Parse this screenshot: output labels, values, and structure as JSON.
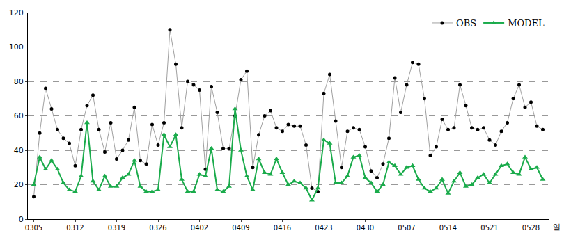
{
  "chart_data": {
    "type": "line",
    "x_label": "일",
    "categories": [
      "0305",
      null,
      null,
      null,
      null,
      null,
      null,
      "0312",
      null,
      null,
      null,
      null,
      null,
      null,
      "0319",
      null,
      null,
      null,
      null,
      null,
      null,
      "0326",
      null,
      null,
      null,
      null,
      null,
      null,
      "0402",
      null,
      null,
      null,
      null,
      null,
      null,
      "0409",
      null,
      null,
      null,
      null,
      null,
      null,
      "0416",
      null,
      null,
      null,
      null,
      null,
      null,
      "0423",
      null,
      null,
      null,
      null,
      null,
      null,
      "0430",
      null,
      null,
      null,
      null,
      null,
      null,
      "0507",
      null,
      null,
      null,
      null,
      null,
      null,
      "0514",
      null,
      null,
      null,
      null,
      null,
      null,
      "0521",
      null,
      null,
      null,
      null,
      null,
      null,
      "0528",
      null,
      null
    ],
    "series": [
      {
        "name": "OBS",
        "color": "#000000",
        "marker": "circle",
        "line_style": "solid",
        "values": [
          13,
          50,
          76,
          64,
          52,
          47,
          44,
          31,
          52,
          66,
          72,
          52,
          39,
          56,
          35,
          40,
          46,
          65,
          34,
          32,
          55,
          43,
          56,
          110,
          90,
          53,
          80,
          78,
          75,
          29,
          77,
          62,
          41,
          41,
          60,
          81,
          86,
          30,
          49,
          60,
          63,
          53,
          51,
          55,
          54,
          54,
          43,
          18,
          16,
          73,
          84,
          57,
          30,
          51,
          53,
          52,
          42,
          28,
          24,
          32,
          47,
          82,
          62,
          78,
          91,
          90,
          70,
          37,
          42,
          58,
          52,
          53,
          78,
          66,
          53,
          52,
          53,
          46,
          43,
          51,
          56,
          70,
          78,
          65,
          68,
          54,
          52
        ]
      },
      {
        "name": "MODEL",
        "color": "#1aab4b",
        "marker": "triangle-up",
        "line_style": "solid",
        "values": [
          20,
          36,
          29,
          34,
          29,
          21,
          17,
          16,
          25,
          56,
          22,
          17,
          25,
          19,
          19,
          24,
          26,
          34,
          19,
          16,
          16,
          17,
          49,
          42,
          49,
          23,
          16,
          16,
          26,
          25,
          41,
          17,
          16,
          19,
          64,
          40,
          25,
          17,
          35,
          27,
          26,
          35,
          27,
          20,
          22,
          21,
          18,
          11,
          18,
          46,
          44,
          21,
          21,
          25,
          36,
          37,
          24,
          21,
          16,
          20,
          33,
          31,
          26,
          30,
          31,
          23,
          18,
          16,
          18,
          23,
          15,
          22,
          27,
          19,
          20,
          24,
          26,
          21,
          26,
          31,
          32,
          27,
          26,
          36,
          29,
          30,
          23
        ]
      }
    ],
    "ylim": [
      0,
      120
    ],
    "yticks": [
      0,
      20,
      40,
      60,
      80,
      100,
      120
    ],
    "grid": true,
    "legend": "top-right"
  }
}
